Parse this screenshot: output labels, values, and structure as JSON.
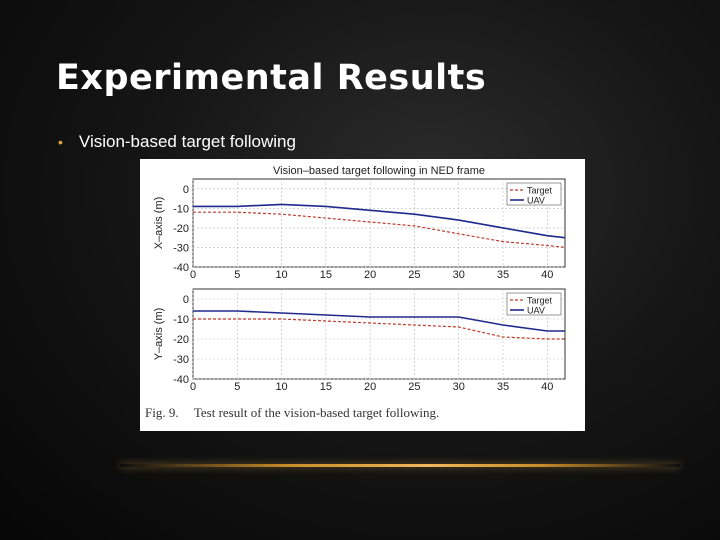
{
  "slide": {
    "title": "Experimental Results",
    "bullet": "Vision-based target following",
    "caption_fig": "Fig. 9.",
    "caption_text": "Test result of the vision-based target following."
  },
  "colors": {
    "target": "#c0392b",
    "uav": "#1f2a8c",
    "accent_line": "#e0a83a"
  },
  "chart_data": [
    {
      "type": "line",
      "title": "Vision–based target following in NED frame",
      "xlabel": "",
      "ylabel": "X–axis (m)",
      "xlim": [
        0,
        42
      ],
      "ylim": [
        -40,
        5
      ],
      "xticks": [
        0,
        5,
        10,
        15,
        20,
        25,
        30,
        35,
        40
      ],
      "yticks": [
        0,
        -10,
        -20,
        -30,
        -40
      ],
      "grid": true,
      "legend": "top-right",
      "series": [
        {
          "name": "Target",
          "style": "dashed",
          "color": "#c0392b",
          "x": [
            0,
            5,
            10,
            15,
            20,
            25,
            30,
            35,
            40,
            42
          ],
          "y": [
            -12,
            -12,
            -13,
            -15,
            -17,
            -19,
            -23,
            -27,
            -29,
            -30
          ]
        },
        {
          "name": "UAV",
          "style": "solid",
          "color": "#1f2a8c",
          "x": [
            0,
            5,
            10,
            15,
            20,
            25,
            30,
            35,
            40,
            42
          ],
          "y": [
            -9,
            -9,
            -8,
            -9,
            -11,
            -13,
            -16,
            -20,
            -24,
            -25
          ]
        }
      ]
    },
    {
      "type": "line",
      "title": "",
      "xlabel": "",
      "ylabel": "Y–axis (m)",
      "xlim": [
        0,
        42
      ],
      "ylim": [
        -40,
        5
      ],
      "xticks": [
        0,
        5,
        10,
        15,
        20,
        25,
        30,
        35,
        40
      ],
      "yticks": [
        0,
        -10,
        -20,
        -30,
        -40
      ],
      "grid": true,
      "legend": "top-right",
      "series": [
        {
          "name": "Target",
          "style": "dashed",
          "color": "#c0392b",
          "x": [
            0,
            5,
            10,
            15,
            20,
            25,
            30,
            35,
            40,
            42
          ],
          "y": [
            -10,
            -10,
            -10,
            -11,
            -12,
            -13,
            -14,
            -19,
            -20,
            -20
          ]
        },
        {
          "name": "UAV",
          "style": "solid",
          "color": "#1f2a8c",
          "x": [
            0,
            5,
            10,
            15,
            20,
            25,
            30,
            35,
            40,
            42
          ],
          "y": [
            -6,
            -6,
            -7,
            -8,
            -9,
            -9,
            -9,
            -13,
            -16,
            -16
          ]
        }
      ]
    }
  ]
}
